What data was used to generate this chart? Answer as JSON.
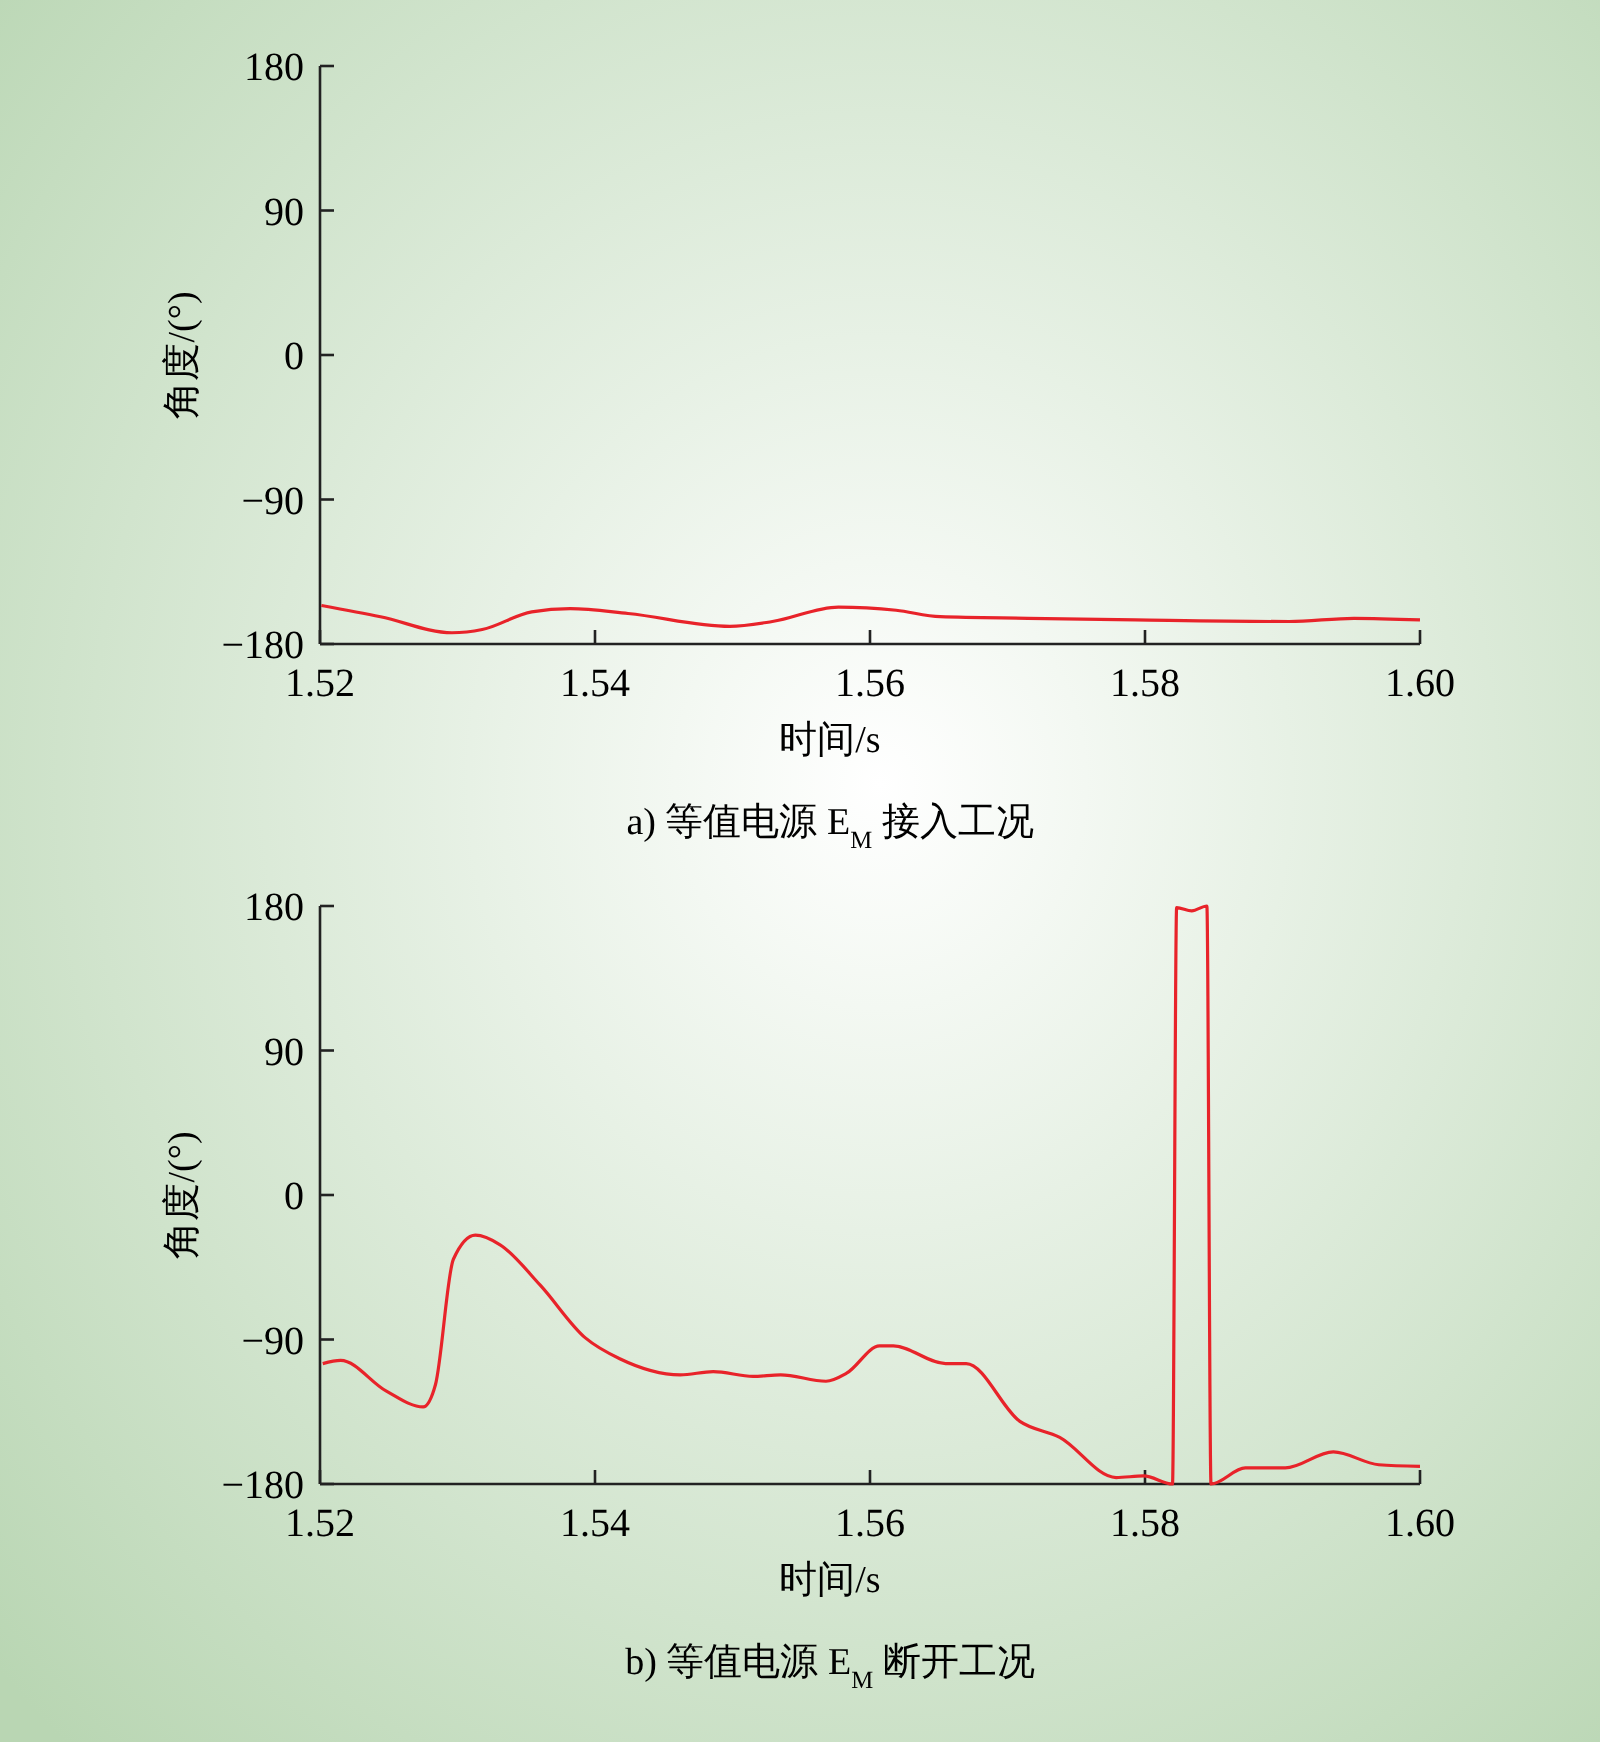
{
  "chart_data": [
    {
      "type": "line",
      "title": "a) 等值电源 E$_{M}$ 接入工况",
      "xlabel": "时间/s",
      "ylabel": "角度/(°)",
      "xlim": [
        1.52,
        1.6
      ],
      "xticks": [
        {
          "value": 1.52,
          "label": "1.52"
        },
        {
          "value": 1.54,
          "label": "1.54"
        },
        {
          "value": 1.56,
          "label": "1.56"
        },
        {
          "value": 1.58,
          "label": "1.58"
        },
        {
          "value": 1.6,
          "label": "1.60"
        }
      ],
      "ylim": [
        -180,
        180
      ],
      "yticks": [
        -180,
        -90,
        0,
        90,
        180
      ],
      "grid": false,
      "series": [
        {
          "color": "#e8232a",
          "x": [
            1.5201,
            1.5244,
            1.5296,
            1.5318,
            1.5354,
            1.5382,
            1.5424,
            1.5498,
            1.5529,
            1.5577,
            1.5619,
            1.5651,
            1.5715,
            1.5793,
            1.5905,
            1.5952,
            1.6
          ],
          "values": [
            -156,
            -163,
            -173,
            -171,
            -160,
            -158,
            -161,
            -169,
            -166,
            -157,
            -159,
            -163,
            -164,
            -165,
            -166,
            -164,
            -165
          ]
        }
      ]
    },
    {
      "type": "line",
      "title": "b) 等值电源 E$_{M}$ 断开工况",
      "xlabel": "时间/s",
      "ylabel": "角度/(°)",
      "xlim": [
        1.52,
        1.6
      ],
      "xticks": [
        {
          "value": 1.52,
          "label": "1.52"
        },
        {
          "value": 1.54,
          "label": "1.54"
        },
        {
          "value": 1.56,
          "label": "1.56"
        },
        {
          "value": 1.58,
          "label": "1.58"
        },
        {
          "value": 1.6,
          "label": "1.60"
        }
      ],
      "ylim": [
        -180,
        180
      ],
      "yticks": [
        -180,
        -90,
        0,
        90,
        180
      ],
      "grid": false,
      "series": [
        {
          "color": "#e8232a",
          "x": [
            1.5202,
            1.5215,
            1.5248,
            1.5275,
            1.5284,
            1.5297,
            1.5313,
            1.5331,
            1.536,
            1.5393,
            1.5418,
            1.5462,
            1.5486,
            1.5515,
            1.5535,
            1.5568,
            1.5583,
            1.5607,
            1.5617,
            1.5655,
            1.567,
            1.5709,
            1.5738,
            1.5779,
            1.5799,
            1.582,
            1.5823,
            1.5834,
            1.5845,
            1.5848,
            1.5873,
            1.5902,
            1.5937,
            1.597,
            1.6
          ],
          "values": [
            -105,
            -103,
            -122,
            -132,
            -118,
            -40,
            -25,
            -31,
            -56,
            -89,
            -102,
            -112,
            -110,
            -113,
            -112,
            -116,
            -111,
            -94,
            -94,
            -105,
            -105,
            -141,
            -151,
            -176,
            -175,
            -180,
            179,
            177,
            180,
            -180,
            -170,
            -170,
            -160,
            -168,
            -169
          ]
        }
      ]
    }
  ]
}
